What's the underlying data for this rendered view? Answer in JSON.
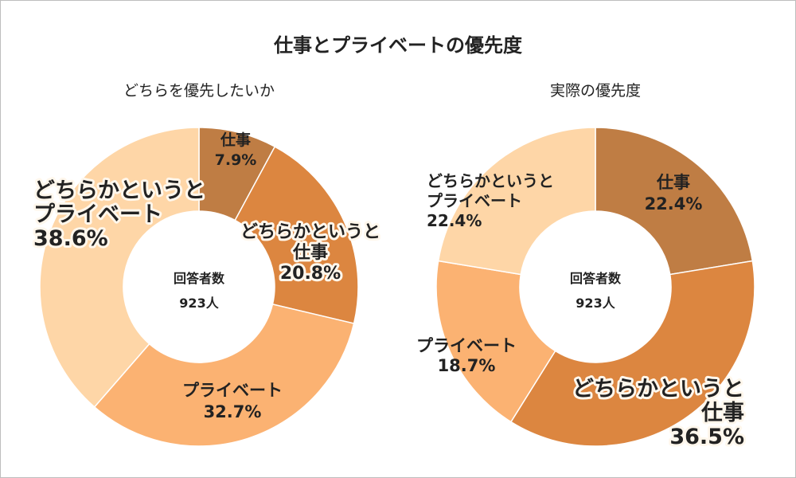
{
  "title": "仕事とプライベートの優先度",
  "chart_data": [
    {
      "type": "pie",
      "title": "どちらを優先したいか",
      "center_label": "回答者数",
      "center_value": "923人",
      "slices": [
        {
          "label": "仕事",
          "value": 7.9,
          "display": "7.9%",
          "color": "#bf7d44"
        },
        {
          "label": "どちらかというと仕事",
          "value": 20.8,
          "display": "20.8%",
          "color": "#dc8640"
        },
        {
          "label": "プライベート",
          "value": 32.7,
          "display": "32.7%",
          "color": "#fbb272"
        },
        {
          "label": "どちらかというとプライベート",
          "value": 38.6,
          "display": "38.6%",
          "color": "#fed6a7"
        }
      ]
    },
    {
      "type": "pie",
      "title": "実際の優先度",
      "center_label": "回答者数",
      "center_value": "923人",
      "slices": [
        {
          "label": "仕事",
          "value": 22.4,
          "display": "22.4%",
          "color": "#bf7d44"
        },
        {
          "label": "どちらかというと仕事",
          "value": 36.5,
          "display": "36.5%",
          "color": "#dc8640"
        },
        {
          "label": "プライベート",
          "value": 18.7,
          "display": "18.7%",
          "color": "#fbb272"
        },
        {
          "label": "どちらかというとプライベート",
          "value": 22.4,
          "display": "22.4%",
          "color": "#fed6a7"
        }
      ]
    }
  ]
}
